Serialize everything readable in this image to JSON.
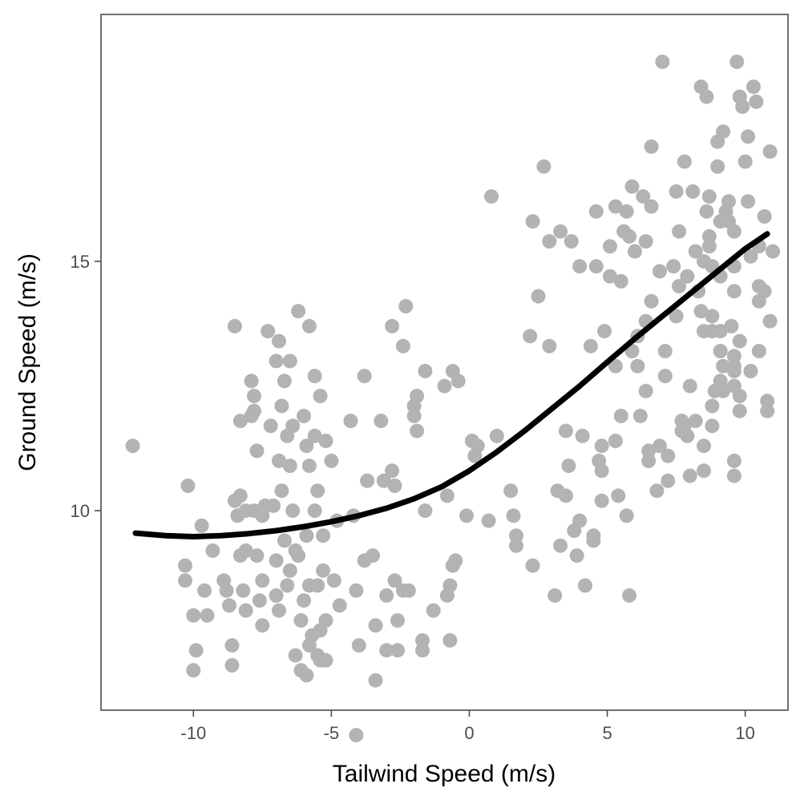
{
  "chart_data": {
    "type": "scatter",
    "title": "",
    "xlabel": "Tailwind Speed (m/s)",
    "ylabel": "Ground Speed (m/s)",
    "xlim": [
      -13.35,
      11.55
    ],
    "ylim": [
      6.0,
      19.95
    ],
    "x_ticks": [
      -10,
      -5,
      0,
      5,
      10
    ],
    "x_tick_labels": [
      "-10",
      "-5",
      "0",
      "5",
      "10"
    ],
    "y_ticks": [
      10,
      15
    ],
    "y_tick_labels": [
      "10",
      "15"
    ],
    "grid": false,
    "legend": "none",
    "colors": {
      "points": "#b3b3b3",
      "line": "#000000",
      "panel_border": "#4d4d4d",
      "ticks": "#4d4d4d"
    },
    "points": [
      [
        -12.2,
        11.3
      ],
      [
        -10.2,
        10.5
      ],
      [
        -10.3,
        8.9
      ],
      [
        -10.3,
        8.6
      ],
      [
        -10.0,
        7.9
      ],
      [
        -9.9,
        7.2
      ],
      [
        -10.0,
        6.8
      ],
      [
        -9.7,
        9.7
      ],
      [
        -9.6,
        8.4
      ],
      [
        -9.5,
        7.9
      ],
      [
        -9.3,
        9.2
      ],
      [
        -8.9,
        8.6
      ],
      [
        -8.8,
        8.4
      ],
      [
        -8.7,
        8.1
      ],
      [
        -8.6,
        7.3
      ],
      [
        -8.6,
        6.9
      ],
      [
        -8.5,
        10.2
      ],
      [
        -8.4,
        9.9
      ],
      [
        -8.3,
        9.1
      ],
      [
        -8.2,
        8.4
      ],
      [
        -8.1,
        8.0
      ],
      [
        -8.3,
        10.3
      ],
      [
        -8.5,
        13.7
      ],
      [
        -8.3,
        11.8
      ],
      [
        -8.1,
        10.0
      ],
      [
        -8.1,
        9.2
      ],
      [
        -7.9,
        12.6
      ],
      [
        -7.8,
        12.3
      ],
      [
        -7.8,
        12.0
      ],
      [
        -7.9,
        11.9
      ],
      [
        -7.7,
        11.2
      ],
      [
        -7.8,
        10.0
      ],
      [
        -7.7,
        9.1
      ],
      [
        -7.5,
        8.6
      ],
      [
        -7.6,
        8.2
      ],
      [
        -7.5,
        7.7
      ],
      [
        -7.3,
        13.6
      ],
      [
        -7.4,
        10.1
      ],
      [
        -7.5,
        9.9
      ],
      [
        -7.2,
        11.7
      ],
      [
        -7.1,
        10.1
      ],
      [
        -7.0,
        9.0
      ],
      [
        -7.0,
        8.3
      ],
      [
        -6.9,
        8.0
      ],
      [
        -7.0,
        13.0
      ],
      [
        -6.9,
        13.4
      ],
      [
        -6.8,
        12.1
      ],
      [
        -6.9,
        11.0
      ],
      [
        -6.8,
        10.4
      ],
      [
        -6.7,
        9.4
      ],
      [
        -6.6,
        8.5
      ],
      [
        -6.7,
        12.6
      ],
      [
        -6.6,
        11.5
      ],
      [
        -6.5,
        10.9
      ],
      [
        -6.4,
        10.0
      ],
      [
        -6.3,
        9.2
      ],
      [
        -6.5,
        8.8
      ],
      [
        -6.5,
        13.0
      ],
      [
        -6.4,
        11.7
      ],
      [
        -6.3,
        7.1
      ],
      [
        -6.2,
        9.1
      ],
      [
        -6.1,
        7.8
      ],
      [
        -6.0,
        8.2
      ],
      [
        -6.2,
        14.0
      ],
      [
        -6.0,
        11.9
      ],
      [
        -5.9,
        11.3
      ],
      [
        -5.8,
        10.9
      ],
      [
        -5.9,
        9.5
      ],
      [
        -5.8,
        8.5
      ],
      [
        -5.7,
        7.5
      ],
      [
        -6.1,
        6.8
      ],
      [
        -5.9,
        6.7
      ],
      [
        -5.8,
        7.3
      ],
      [
        -5.8,
        13.7
      ],
      [
        -5.6,
        12.7
      ],
      [
        -5.6,
        11.5
      ],
      [
        -5.5,
        10.4
      ],
      [
        -5.6,
        10.0
      ],
      [
        -5.5,
        8.5
      ],
      [
        -5.4,
        7.6
      ],
      [
        -5.5,
        7.1
      ],
      [
        -5.4,
        7.0
      ],
      [
        -5.2,
        7.0
      ],
      [
        -5.4,
        12.3
      ],
      [
        -5.2,
        11.4
      ],
      [
        -5.3,
        9.5
      ],
      [
        -5.3,
        8.8
      ],
      [
        -5.2,
        7.8
      ],
      [
        -5.0,
        11.0
      ],
      [
        -4.9,
        8.6
      ],
      [
        -4.8,
        9.8
      ],
      [
        -4.7,
        8.1
      ],
      [
        -4.3,
        11.8
      ],
      [
        -4.2,
        9.9
      ],
      [
        -4.1,
        8.4
      ],
      [
        -4.0,
        7.3
      ],
      [
        -4.1,
        5.5
      ],
      [
        -3.8,
        12.7
      ],
      [
        -3.7,
        10.6
      ],
      [
        -3.8,
        9.0
      ],
      [
        -3.5,
        9.1
      ],
      [
        -3.4,
        6.6
      ],
      [
        -3.4,
        7.7
      ],
      [
        -3.2,
        11.8
      ],
      [
        -3.1,
        10.6
      ],
      [
        -3.0,
        8.3
      ],
      [
        -3.0,
        7.2
      ],
      [
        -2.8,
        13.7
      ],
      [
        -2.8,
        10.8
      ],
      [
        -2.7,
        10.5
      ],
      [
        -2.7,
        8.6
      ],
      [
        -2.6,
        7.8
      ],
      [
        -2.6,
        7.2
      ],
      [
        -2.4,
        13.3
      ],
      [
        -2.4,
        8.4
      ],
      [
        -2.3,
        14.1
      ],
      [
        -2.2,
        8.4
      ],
      [
        -2.0,
        12.1
      ],
      [
        -2.0,
        11.9
      ],
      [
        -1.9,
        11.6
      ],
      [
        -1.9,
        12.3
      ],
      [
        -1.7,
        7.4
      ],
      [
        -1.7,
        7.2
      ],
      [
        -1.6,
        12.8
      ],
      [
        -1.6,
        10.0
      ],
      [
        -1.3,
        8.0
      ],
      [
        -0.9,
        12.5
      ],
      [
        -0.8,
        8.3
      ],
      [
        -0.8,
        10.3
      ],
      [
        -0.7,
        8.5
      ],
      [
        -0.7,
        7.4
      ],
      [
        -0.6,
        12.8
      ],
      [
        -0.6,
        8.9
      ],
      [
        -0.5,
        9.0
      ],
      [
        -0.4,
        12.6
      ],
      [
        -0.1,
        9.9
      ],
      [
        0.1,
        11.4
      ],
      [
        0.3,
        11.3
      ],
      [
        0.2,
        11.1
      ],
      [
        0.7,
        9.8
      ],
      [
        0.8,
        16.3
      ],
      [
        1.0,
        11.5
      ],
      [
        1.5,
        10.4
      ],
      [
        1.6,
        9.9
      ],
      [
        1.7,
        9.5
      ],
      [
        1.7,
        9.3
      ],
      [
        2.2,
        13.5
      ],
      [
        2.3,
        15.8
      ],
      [
        2.3,
        8.9
      ],
      [
        2.5,
        14.3
      ],
      [
        2.7,
        16.9
      ],
      [
        2.9,
        13.3
      ],
      [
        2.9,
        15.4
      ],
      [
        3.1,
        8.3
      ],
      [
        3.3,
        15.6
      ],
      [
        3.2,
        10.4
      ],
      [
        3.3,
        9.3
      ],
      [
        3.5,
        10.3
      ],
      [
        3.5,
        11.6
      ],
      [
        3.6,
        10.9
      ],
      [
        3.7,
        15.4
      ],
      [
        3.8,
        9.6
      ],
      [
        3.9,
        9.1
      ],
      [
        4.0,
        14.9
      ],
      [
        4.0,
        9.8
      ],
      [
        4.1,
        11.5
      ],
      [
        4.2,
        8.5
      ],
      [
        4.4,
        13.3
      ],
      [
        4.5,
        9.5
      ],
      [
        4.5,
        9.4
      ],
      [
        4.6,
        16.0
      ],
      [
        4.6,
        14.9
      ],
      [
        4.8,
        11.3
      ],
      [
        4.7,
        11.0
      ],
      [
        4.8,
        10.8
      ],
      [
        4.8,
        10.2
      ],
      [
        4.9,
        13.6
      ],
      [
        5.1,
        15.3
      ],
      [
        5.1,
        14.7
      ],
      [
        5.3,
        16.1
      ],
      [
        5.3,
        12.9
      ],
      [
        5.3,
        11.4
      ],
      [
        5.4,
        10.3
      ],
      [
        5.5,
        14.6
      ],
      [
        5.5,
        11.9
      ],
      [
        5.6,
        15.6
      ],
      [
        5.7,
        16.0
      ],
      [
        5.7,
        9.9
      ],
      [
        5.8,
        15.5
      ],
      [
        5.8,
        8.3
      ],
      [
        5.9,
        16.5
      ],
      [
        5.9,
        13.2
      ],
      [
        6.0,
        15.2
      ],
      [
        6.1,
        13.5
      ],
      [
        6.1,
        12.9
      ],
      [
        6.2,
        11.9
      ],
      [
        6.3,
        16.3
      ],
      [
        6.4,
        15.4
      ],
      [
        6.4,
        13.8
      ],
      [
        6.4,
        12.4
      ],
      [
        6.5,
        11.2
      ],
      [
        6.5,
        11.0
      ],
      [
        6.6,
        17.3
      ],
      [
        6.6,
        14.2
      ],
      [
        6.6,
        16.1
      ],
      [
        6.8,
        10.4
      ],
      [
        6.9,
        11.3
      ],
      [
        6.9,
        14.8
      ],
      [
        7.0,
        19.0
      ],
      [
        7.1,
        13.2
      ],
      [
        7.1,
        12.7
      ],
      [
        7.2,
        11.1
      ],
      [
        7.2,
        10.6
      ],
      [
        7.4,
        14.9
      ],
      [
        7.5,
        16.4
      ],
      [
        7.6,
        15.6
      ],
      [
        7.6,
        14.5
      ],
      [
        7.5,
        13.9
      ],
      [
        7.7,
        11.8
      ],
      [
        7.7,
        11.6
      ],
      [
        7.8,
        11.7
      ],
      [
        7.8,
        17.0
      ],
      [
        7.9,
        14.7
      ],
      [
        8.0,
        12.5
      ],
      [
        8.0,
        10.7
      ],
      [
        7.9,
        11.5
      ],
      [
        8.1,
        16.4
      ],
      [
        8.2,
        15.2
      ],
      [
        8.2,
        11.8
      ],
      [
        8.3,
        14.4
      ],
      [
        8.4,
        18.5
      ],
      [
        8.4,
        14.0
      ],
      [
        8.5,
        13.6
      ],
      [
        8.5,
        11.3
      ],
      [
        8.5,
        10.8
      ],
      [
        8.5,
        15.0
      ],
      [
        8.6,
        18.3
      ],
      [
        8.6,
        16.0
      ],
      [
        8.7,
        15.5
      ],
      [
        8.7,
        16.3
      ],
      [
        8.7,
        15.3
      ],
      [
        8.8,
        14.9
      ],
      [
        8.8,
        13.9
      ],
      [
        8.8,
        13.6
      ],
      [
        8.8,
        12.1
      ],
      [
        8.8,
        11.7
      ],
      [
        8.9,
        12.4
      ],
      [
        9.0,
        17.4
      ],
      [
        9.0,
        16.9
      ],
      [
        9.1,
        15.8
      ],
      [
        9.1,
        14.7
      ],
      [
        9.1,
        13.2
      ],
      [
        9.1,
        13.6
      ],
      [
        9.1,
        12.6
      ],
      [
        9.2,
        12.4
      ],
      [
        9.2,
        12.9
      ],
      [
        9.3,
        16.0
      ],
      [
        9.2,
        17.6
      ],
      [
        9.4,
        16.2
      ],
      [
        9.4,
        15.8
      ],
      [
        9.5,
        13.7
      ],
      [
        9.6,
        12.5
      ],
      [
        9.6,
        14.9
      ],
      [
        9.6,
        14.4
      ],
      [
        9.6,
        15.6
      ],
      [
        9.6,
        12.9
      ],
      [
        9.6,
        13.1
      ],
      [
        9.6,
        12.8
      ],
      [
        9.6,
        11.0
      ],
      [
        9.6,
        10.7
      ],
      [
        9.7,
        19.0
      ],
      [
        9.8,
        18.3
      ],
      [
        9.8,
        13.4
      ],
      [
        9.8,
        12.0
      ],
      [
        9.8,
        12.3
      ],
      [
        9.9,
        18.1
      ],
      [
        10.0,
        17.0
      ],
      [
        10.1,
        17.5
      ],
      [
        10.1,
        16.2
      ],
      [
        10.2,
        15.1
      ],
      [
        10.2,
        12.8
      ],
      [
        10.3,
        18.5
      ],
      [
        10.4,
        18.2
      ],
      [
        10.5,
        15.3
      ],
      [
        10.5,
        14.2
      ],
      [
        10.5,
        13.2
      ],
      [
        10.5,
        14.5
      ],
      [
        10.7,
        15.9
      ],
      [
        10.7,
        14.4
      ],
      [
        10.8,
        12.0
      ],
      [
        10.8,
        12.2
      ],
      [
        10.9,
        17.2
      ],
      [
        10.9,
        13.8
      ],
      [
        11.0,
        15.2
      ]
    ],
    "trend_line": [
      [
        -12.1,
        9.55
      ],
      [
        -11.0,
        9.5
      ],
      [
        -10.0,
        9.48
      ],
      [
        -9.0,
        9.5
      ],
      [
        -8.0,
        9.54
      ],
      [
        -7.0,
        9.6
      ],
      [
        -6.0,
        9.68
      ],
      [
        -5.0,
        9.78
      ],
      [
        -4.0,
        9.9
      ],
      [
        -3.0,
        10.05
      ],
      [
        -2.0,
        10.24
      ],
      [
        -1.0,
        10.48
      ],
      [
        0.0,
        10.8
      ],
      [
        1.0,
        11.18
      ],
      [
        2.0,
        11.6
      ],
      [
        3.0,
        12.05
      ],
      [
        4.0,
        12.5
      ],
      [
        5.0,
        12.98
      ],
      [
        6.0,
        13.45
      ],
      [
        7.0,
        13.9
      ],
      [
        8.0,
        14.35
      ],
      [
        9.0,
        14.8
      ],
      [
        10.0,
        15.25
      ],
      [
        10.8,
        15.55
      ]
    ]
  }
}
